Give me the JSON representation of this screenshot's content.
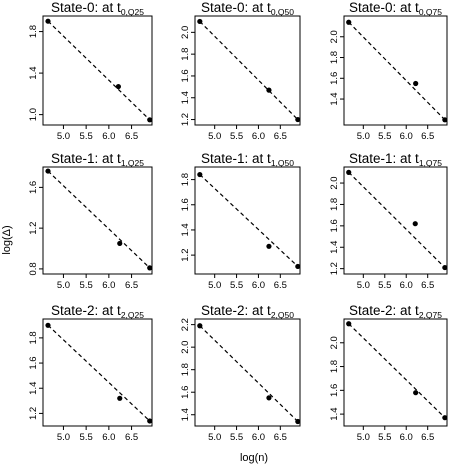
{
  "figure": {
    "xlabel": "log(n)",
    "ylabel": "log(Δ)"
  },
  "chart_data": [
    {
      "type": "scatter",
      "title_prefix": "State-0: at t",
      "title_sub": "0,Q25",
      "xlim": [
        4.55,
        6.95
      ],
      "ylim": [
        0.9,
        1.95
      ],
      "xticks": [
        "5.0",
        "5.5",
        "6.0",
        "6.5"
      ],
      "yticks": [
        "1.0",
        "1.4",
        "1.8"
      ],
      "points": {
        "x": [
          4.66,
          6.21,
          6.9
        ],
        "y": [
          1.9,
          1.27,
          0.95
        ]
      },
      "trend": {
        "x": [
          4.66,
          6.9
        ],
        "y": [
          1.9,
          0.95
        ]
      }
    },
    {
      "type": "scatter",
      "title_prefix": "State-0: at t",
      "title_sub": "0,Q50",
      "xlim": [
        4.55,
        6.95
      ],
      "ylim": [
        1.15,
        2.15
      ],
      "xticks": [
        "5.0",
        "5.5",
        "6.0",
        "6.5"
      ],
      "yticks": [
        "1.2",
        "1.4",
        "1.6",
        "1.8",
        "2.0"
      ],
      "points": {
        "x": [
          4.66,
          6.24,
          6.9
        ],
        "y": [
          2.1,
          1.47,
          1.2
        ]
      },
      "trend": {
        "x": [
          4.66,
          6.9
        ],
        "y": [
          2.1,
          1.2
        ]
      }
    },
    {
      "type": "scatter",
      "title_prefix": "State-0: at t",
      "title_sub": "0,Q75",
      "xlim": [
        4.55,
        6.95
      ],
      "ylim": [
        1.15,
        2.2
      ],
      "xticks": [
        "5.0",
        "5.5",
        "6.0",
        "6.5"
      ],
      "yticks": [
        "1.4",
        "1.6",
        "1.8",
        "2.0"
      ],
      "points": {
        "x": [
          4.66,
          6.22,
          6.9
        ],
        "y": [
          2.14,
          1.55,
          1.2
        ]
      },
      "trend": {
        "x": [
          4.66,
          6.9
        ],
        "y": [
          2.14,
          1.2
        ]
      }
    },
    {
      "type": "scatter",
      "title_prefix": "State-1: at t",
      "title_sub": "1,Q25",
      "xlim": [
        4.55,
        6.95
      ],
      "ylim": [
        0.75,
        1.8
      ],
      "xticks": [
        "5.0",
        "5.5",
        "6.0",
        "6.5"
      ],
      "yticks": [
        "0.8",
        "1.2",
        "1.6"
      ],
      "points": {
        "x": [
          4.66,
          6.24,
          6.9
        ],
        "y": [
          1.76,
          1.05,
          0.81
        ]
      },
      "trend": {
        "x": [
          4.66,
          6.9
        ],
        "y": [
          1.76,
          0.81
        ]
      }
    },
    {
      "type": "scatter",
      "title_prefix": "State-1: at t",
      "title_sub": "1,Q50",
      "xlim": [
        4.55,
        6.95
      ],
      "ylim": [
        1.05,
        1.9
      ],
      "xticks": [
        "5.0",
        "5.5",
        "6.0",
        "6.5"
      ],
      "yticks": [
        "1.2",
        "1.4",
        "1.6",
        "1.8"
      ],
      "points": {
        "x": [
          4.66,
          6.24,
          6.9
        ],
        "y": [
          1.84,
          1.27,
          1.11
        ]
      },
      "trend": {
        "x": [
          4.66,
          6.9
        ],
        "y": [
          1.84,
          1.11
        ]
      }
    },
    {
      "type": "scatter",
      "title_prefix": "State-1: at t",
      "title_sub": "1,Q75",
      "xlim": [
        4.55,
        6.95
      ],
      "ylim": [
        1.15,
        2.15
      ],
      "xticks": [
        "5.0",
        "5.5",
        "6.0",
        "6.5"
      ],
      "yticks": [
        "1.2",
        "1.4",
        "1.6",
        "1.8",
        "2.0"
      ],
      "points": {
        "x": [
          4.66,
          6.21,
          6.9
        ],
        "y": [
          2.1,
          1.62,
          1.21
        ]
      },
      "trend": {
        "x": [
          4.66,
          6.9
        ],
        "y": [
          2.1,
          1.21
        ]
      }
    },
    {
      "type": "scatter",
      "title_prefix": "State-2: at t",
      "title_sub": "2,Q25",
      "xlim": [
        4.55,
        6.95
      ],
      "ylim": [
        1.1,
        1.95
      ],
      "xticks": [
        "5.0",
        "5.5",
        "6.0",
        "6.5"
      ],
      "yticks": [
        "1.2",
        "1.4",
        "1.6",
        "1.8"
      ],
      "points": {
        "x": [
          4.66,
          6.24,
          6.9
        ],
        "y": [
          1.9,
          1.32,
          1.14
        ]
      },
      "trend": {
        "x": [
          4.66,
          6.9
        ],
        "y": [
          1.9,
          1.14
        ]
      }
    },
    {
      "type": "scatter",
      "title_prefix": "State-2: at t",
      "title_sub": "2,Q50",
      "xlim": [
        4.55,
        6.95
      ],
      "ylim": [
        1.3,
        2.25
      ],
      "xticks": [
        "5.0",
        "5.5",
        "6.0",
        "6.5"
      ],
      "yticks": [
        "1.4",
        "1.6",
        "1.8",
        "2.0",
        "2.2"
      ],
      "points": {
        "x": [
          4.66,
          6.24,
          6.9
        ],
        "y": [
          2.19,
          1.55,
          1.34
        ]
      },
      "trend": {
        "x": [
          4.66,
          6.9
        ],
        "y": [
          2.19,
          1.34
        ]
      }
    },
    {
      "type": "scatter",
      "title_prefix": "State-2: at t",
      "title_sub": "2,Q75",
      "xlim": [
        4.55,
        6.95
      ],
      "ylim": [
        1.3,
        2.2
      ],
      "xticks": [
        "5.0",
        "5.5",
        "6.0",
        "6.5"
      ],
      "yticks": [
        "1.4",
        "1.6",
        "1.8",
        "2.0"
      ],
      "points": {
        "x": [
          4.66,
          6.22,
          6.9
        ],
        "y": [
          2.16,
          1.58,
          1.37
        ]
      },
      "trend": {
        "x": [
          4.66,
          6.9
        ],
        "y": [
          2.16,
          1.37
        ]
      }
    }
  ]
}
